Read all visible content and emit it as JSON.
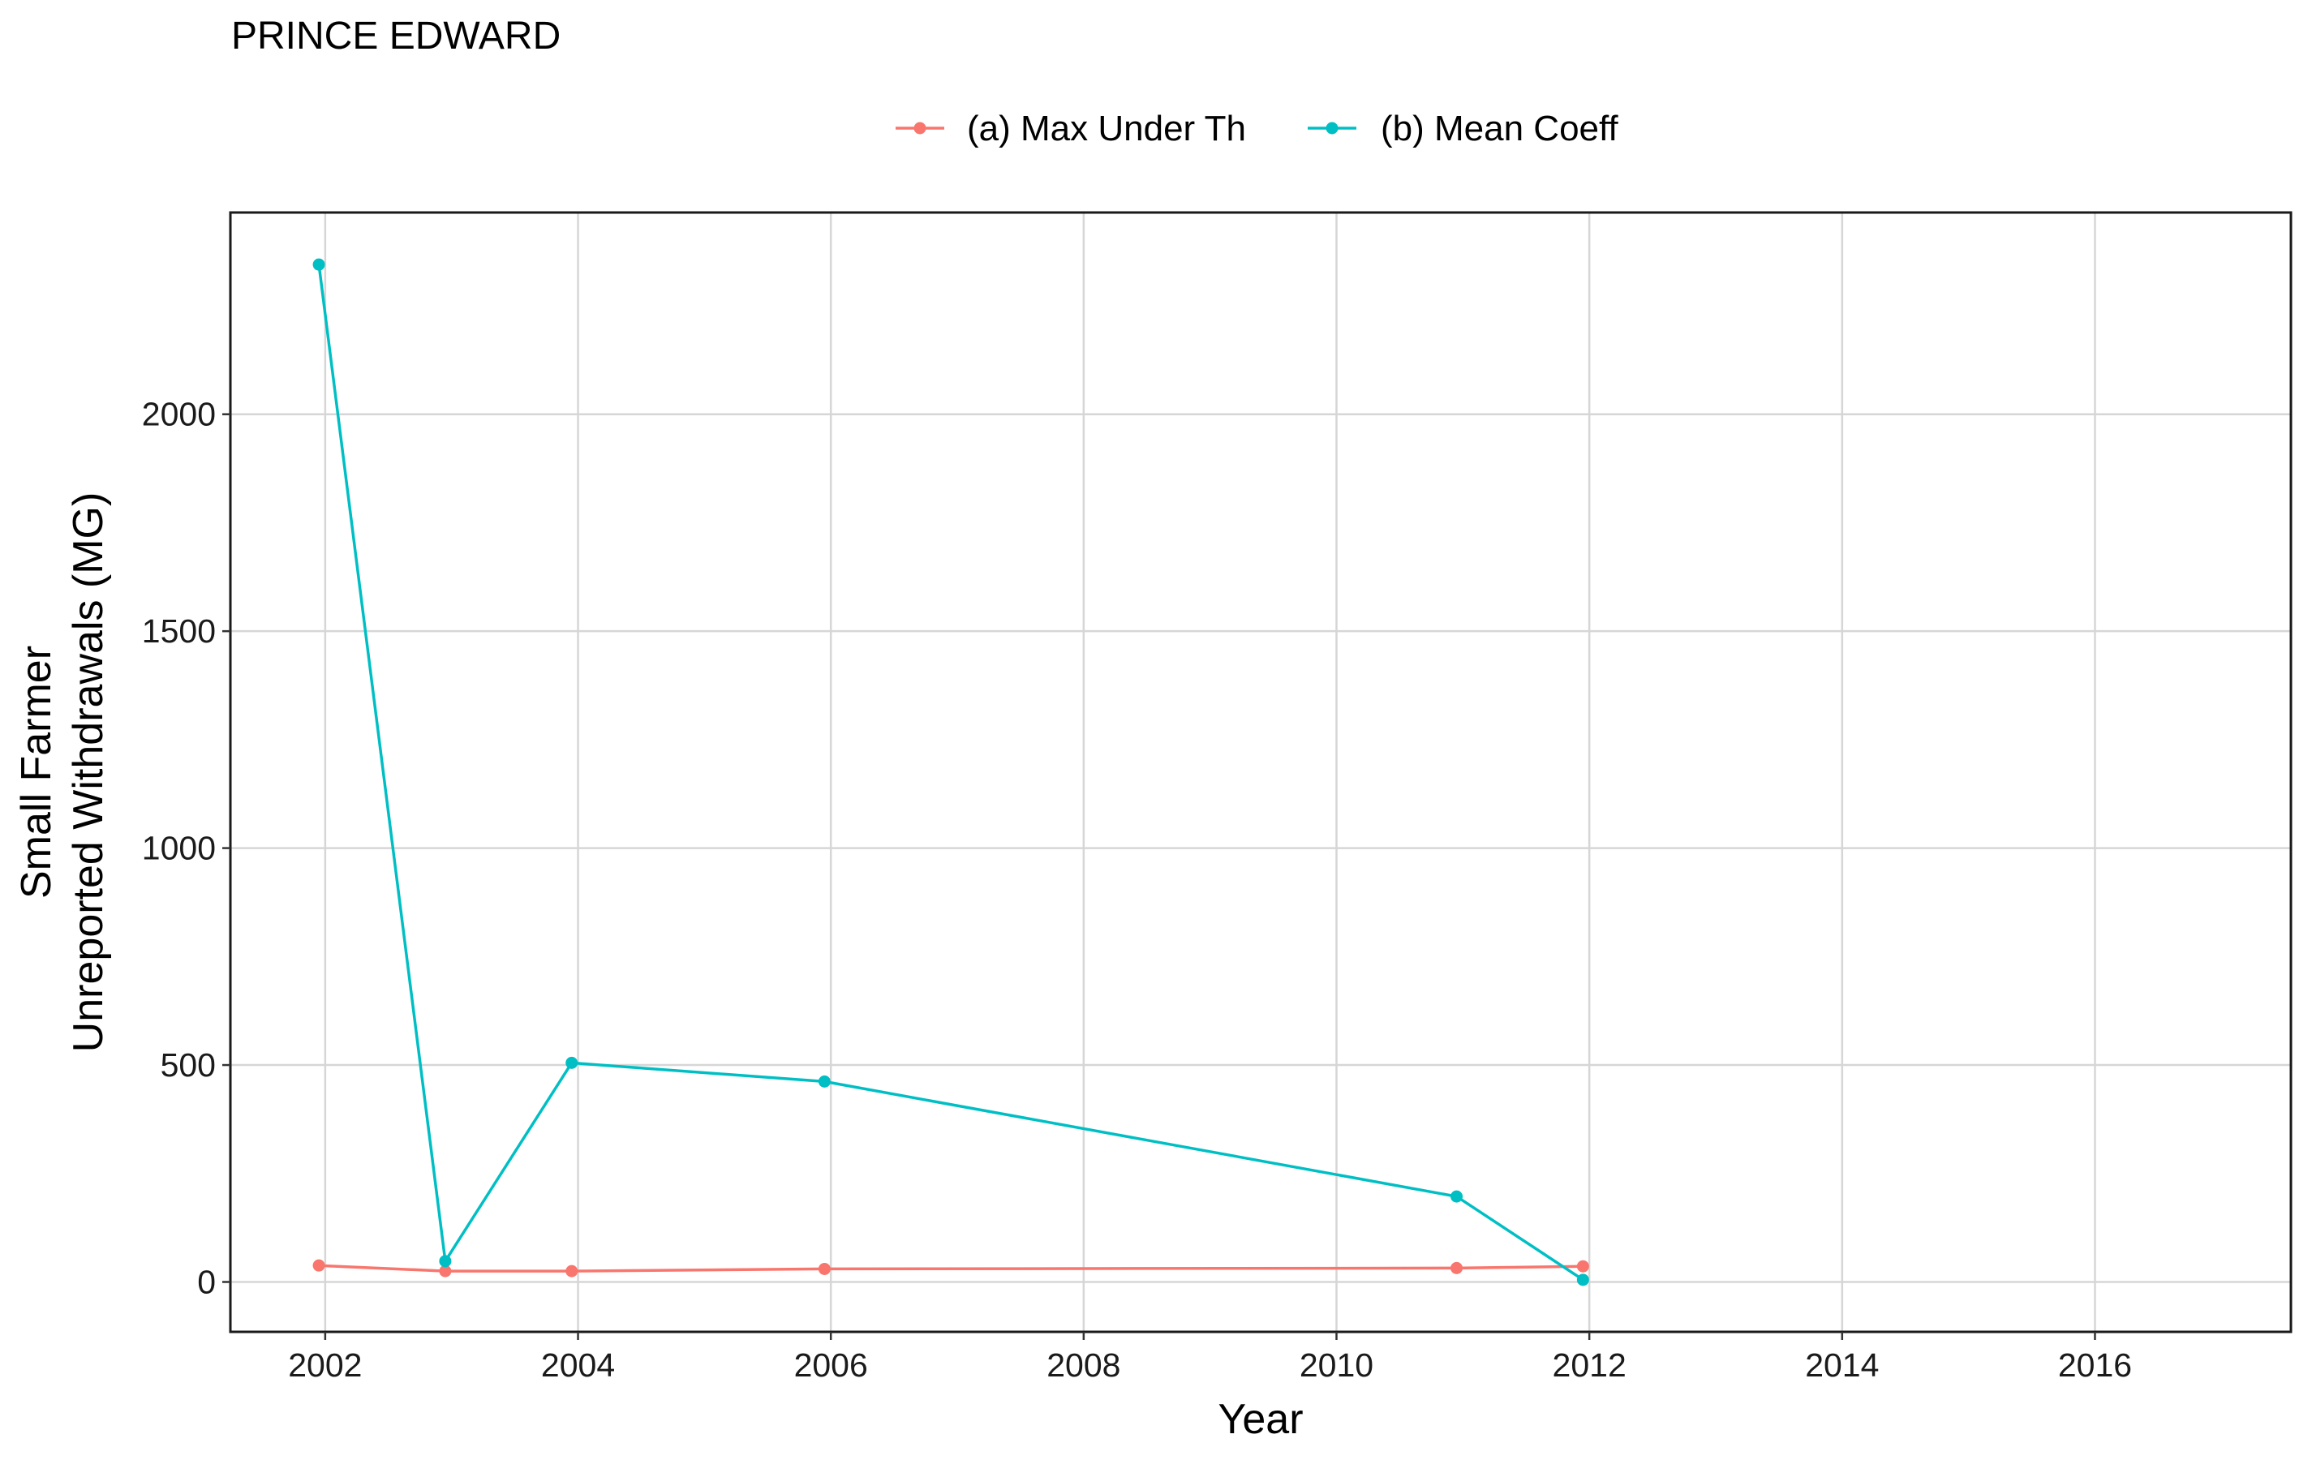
{
  "title": "PRINCE EDWARD",
  "legend": [
    {
      "label": "(a) Max Under Th",
      "color": "#F8766D"
    },
    {
      "label": "(b) Mean Coeff",
      "color": "#00BFC4"
    }
  ],
  "axes": {
    "xlabel": "Year",
    "ylabel_line1": "Small Farmer",
    "ylabel_line2": "Unreported Withdrawals (MG)"
  },
  "chart_data": {
    "type": "line",
    "title": "PRINCE EDWARD",
    "xlabel": "Year",
    "ylabel": "Small Farmer Unreported Withdrawals (MG)",
    "xlim": [
      2001.25,
      2017.55
    ],
    "ylim": [
      -115,
      2465
    ],
    "x_ticks": [
      2002,
      2004,
      2006,
      2008,
      2010,
      2012,
      2014,
      2016
    ],
    "y_ticks": [
      0,
      500,
      1000,
      1500,
      2000
    ],
    "grid": true,
    "legend_position": "top",
    "series": [
      {
        "name": "(a) Max Under Th",
        "color": "#F8766D",
        "x": [
          2001.95,
          2002.95,
          2003.95,
          2005.95,
          2010.95,
          2011.95
        ],
        "y": [
          38,
          25,
          25,
          30,
          32,
          36
        ]
      },
      {
        "name": "(b) Mean Coeff",
        "color": "#00BFC4",
        "x": [
          2001.95,
          2002.95,
          2003.95,
          2005.95,
          2010.95,
          2011.95
        ],
        "y": [
          2345,
          48,
          505,
          462,
          197,
          5
        ]
      }
    ]
  }
}
